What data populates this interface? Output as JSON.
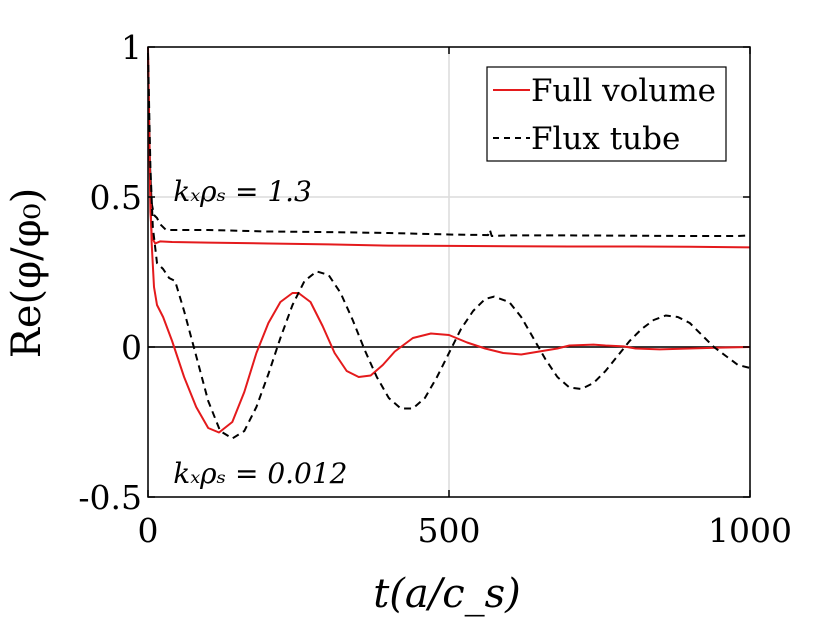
{
  "chart_data": {
    "type": "line",
    "xlabel": "t(a/c_s)",
    "ylabel": "Re(φ/φ₀)",
    "xlim": [
      0,
      1000
    ],
    "ylim": [
      -0.5,
      1
    ],
    "xticks": [
      0,
      500,
      1000
    ],
    "xtick_labels": [
      "0",
      "500",
      "1000"
    ],
    "yticks": [
      -0.5,
      0,
      0.5,
      1
    ],
    "ytick_labels": [
      "-0.5",
      "0",
      "0.5",
      "1"
    ],
    "grid": true,
    "legend_position": "top-right",
    "colors": {
      "full_volume": "#e41a1c",
      "flux_tube": "#000000",
      "zero_line": "#000000",
      "grid": "#dcdcdc"
    },
    "annotations": [
      {
        "text": "kₓρₛ = 1.3",
        "x": 125,
        "y": 0.52
      },
      {
        "text": "kₓρₛ = 0.012",
        "x": 125,
        "y": -0.42
      }
    ],
    "series": [
      {
        "name": "Full volume",
        "case": "k_x rho_s = 1.3",
        "style": "solid",
        "color": "#e41a1c",
        "points": [
          [
            0,
            1.0
          ],
          [
            2,
            0.72
          ],
          [
            4,
            0.45
          ],
          [
            6,
            0.38
          ],
          [
            8,
            0.36
          ],
          [
            12,
            0.345
          ],
          [
            20,
            0.352
          ],
          [
            40,
            0.35
          ],
          [
            100,
            0.348
          ],
          [
            200,
            0.345
          ],
          [
            300,
            0.342
          ],
          [
            400,
            0.338
          ],
          [
            500,
            0.337
          ],
          [
            600,
            0.336
          ],
          [
            700,
            0.335
          ],
          [
            800,
            0.335
          ],
          [
            900,
            0.334
          ],
          [
            1000,
            0.332
          ]
        ]
      },
      {
        "name": "Flux tube",
        "case": "k_x rho_s = 1.3",
        "style": "dashed",
        "color": "#000000",
        "points": [
          [
            0,
            0.96
          ],
          [
            3,
            0.62
          ],
          [
            6,
            0.48
          ],
          [
            10,
            0.44
          ],
          [
            15,
            0.43
          ],
          [
            20,
            0.41
          ],
          [
            30,
            0.39
          ],
          [
            100,
            0.39
          ],
          [
            200,
            0.385
          ],
          [
            300,
            0.383
          ],
          [
            400,
            0.38
          ],
          [
            500,
            0.375
          ],
          [
            565,
            0.373
          ],
          [
            568,
            0.39
          ],
          [
            571,
            0.37
          ],
          [
            600,
            0.372
          ],
          [
            700,
            0.372
          ],
          [
            800,
            0.371
          ],
          [
            900,
            0.37
          ],
          [
            980,
            0.37
          ],
          [
            1000,
            0.372
          ]
        ]
      },
      {
        "name": "Full volume",
        "case": "k_x rho_s = 0.012",
        "style": "solid",
        "color": "#e41a1c",
        "points": [
          [
            0,
            0.97
          ],
          [
            3,
            0.6
          ],
          [
            6,
            0.35
          ],
          [
            10,
            0.2
          ],
          [
            15,
            0.14
          ],
          [
            25,
            0.1
          ],
          [
            40,
            0.02
          ],
          [
            60,
            -0.1
          ],
          [
            80,
            -0.2
          ],
          [
            100,
            -0.27
          ],
          [
            118,
            -0.285
          ],
          [
            140,
            -0.25
          ],
          [
            160,
            -0.15
          ],
          [
            180,
            -0.02
          ],
          [
            200,
            0.08
          ],
          [
            220,
            0.15
          ],
          [
            240,
            0.18
          ],
          [
            250,
            0.18
          ],
          [
            270,
            0.15
          ],
          [
            290,
            0.07
          ],
          [
            310,
            -0.02
          ],
          [
            330,
            -0.08
          ],
          [
            350,
            -0.1
          ],
          [
            370,
            -0.095
          ],
          [
            390,
            -0.06
          ],
          [
            410,
            -0.015
          ],
          [
            440,
            0.03
          ],
          [
            470,
            0.045
          ],
          [
            500,
            0.04
          ],
          [
            530,
            0.015
          ],
          [
            560,
            -0.005
          ],
          [
            590,
            -0.02
          ],
          [
            620,
            -0.025
          ],
          [
            650,
            -0.015
          ],
          [
            680,
            -0.005
          ],
          [
            700,
            0.005
          ],
          [
            740,
            0.008
          ],
          [
            760,
            0.005
          ],
          [
            790,
            0.002
          ],
          [
            810,
            -0.005
          ],
          [
            850,
            -0.008
          ],
          [
            900,
            -0.005
          ],
          [
            950,
            -0.002
          ],
          [
            1000,
            0.0
          ]
        ]
      },
      {
        "name": "Flux tube",
        "case": "k_x rho_s = 0.012",
        "style": "dashed",
        "color": "#000000",
        "points": [
          [
            0,
            0.98
          ],
          [
            4,
            0.6
          ],
          [
            8,
            0.4
          ],
          [
            15,
            0.28
          ],
          [
            25,
            0.26
          ],
          [
            35,
            0.23
          ],
          [
            45,
            0.22
          ],
          [
            60,
            0.12
          ],
          [
            80,
            -0.03
          ],
          [
            100,
            -0.18
          ],
          [
            120,
            -0.28
          ],
          [
            140,
            -0.305
          ],
          [
            160,
            -0.28
          ],
          [
            180,
            -0.2
          ],
          [
            200,
            -0.09
          ],
          [
            220,
            0.03
          ],
          [
            240,
            0.14
          ],
          [
            260,
            0.22
          ],
          [
            280,
            0.252
          ],
          [
            300,
            0.24
          ],
          [
            320,
            0.18
          ],
          [
            340,
            0.09
          ],
          [
            360,
            -0.01
          ],
          [
            380,
            -0.1
          ],
          [
            400,
            -0.17
          ],
          [
            420,
            -0.205
          ],
          [
            440,
            -0.205
          ],
          [
            460,
            -0.17
          ],
          [
            480,
            -0.1
          ],
          [
            500,
            -0.02
          ],
          [
            520,
            0.06
          ],
          [
            540,
            0.12
          ],
          [
            560,
            0.16
          ],
          [
            575,
            0.168
          ],
          [
            600,
            0.15
          ],
          [
            620,
            0.1
          ],
          [
            640,
            0.03
          ],
          [
            660,
            -0.04
          ],
          [
            680,
            -0.1
          ],
          [
            700,
            -0.135
          ],
          [
            720,
            -0.14
          ],
          [
            740,
            -0.12
          ],
          [
            760,
            -0.08
          ],
          [
            780,
            -0.03
          ],
          [
            800,
            0.02
          ],
          [
            820,
            0.06
          ],
          [
            840,
            0.09
          ],
          [
            860,
            0.105
          ],
          [
            880,
            0.1
          ],
          [
            900,
            0.08
          ],
          [
            920,
            0.04
          ],
          [
            940,
            0.0
          ],
          [
            960,
            -0.03
          ],
          [
            980,
            -0.06
          ],
          [
            1000,
            -0.07
          ]
        ]
      }
    ],
    "legend": [
      {
        "label": "Full volume",
        "style": "solid",
        "color": "#e41a1c"
      },
      {
        "label": "Flux tube",
        "style": "dashed",
        "color": "#000000"
      }
    ]
  }
}
